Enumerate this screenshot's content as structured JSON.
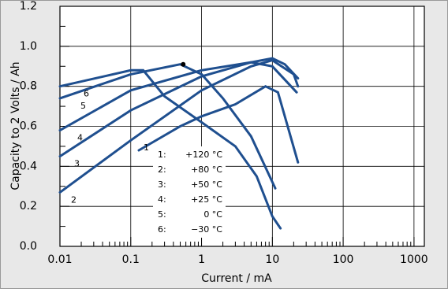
{
  "chart_data": {
    "type": "line",
    "log_x": true,
    "grid": true,
    "minor_ticks": true,
    "xlabel": "Current / mA",
    "ylabel": "Capacity to 2 Volts / Ah",
    "xlim": [
      0.01,
      1400
    ],
    "ylim": [
      0,
      1.2
    ],
    "xticks": [
      0.01,
      0.1,
      1,
      10,
      100,
      1000
    ],
    "yticks": [
      {
        "value": 0,
        "label": "0.0"
      },
      {
        "value": 0.2,
        "label": "0.2"
      },
      {
        "value": 0.4,
        "label": "0.4"
      },
      {
        "value": 0.6,
        "label": "0.6"
      },
      {
        "value": 0.8,
        "label": "0.8"
      },
      {
        "value": 1,
        "label": "1.0"
      },
      {
        "value": 1.2,
        "label": "1.2"
      }
    ],
    "marker": {
      "x": 0.55,
      "y": 0.91
    },
    "series": [
      {
        "label": "1",
        "key": "1:",
        "name": "+120 °C",
        "color": "#1f4f8f",
        "x": [
          0.13,
          0.5,
          1,
          3,
          8,
          12,
          23
        ],
        "values": [
          0.48,
          0.6,
          0.65,
          0.71,
          0.8,
          0.77,
          0.42
        ]
      },
      {
        "label": "2",
        "key": "2:",
        "name": "+80 °C",
        "color": "#1f4f8f",
        "x": [
          0.01,
          0.1,
          1,
          5,
          10,
          20,
          23
        ],
        "values": [
          0.27,
          0.53,
          0.78,
          0.9,
          0.93,
          0.86,
          0.8
        ]
      },
      {
        "label": "3",
        "key": "3:",
        "name": "+50 °C",
        "color": "#1f4f8f",
        "x": [
          0.01,
          0.1,
          1,
          5,
          10,
          15,
          23
        ],
        "values": [
          0.45,
          0.68,
          0.85,
          0.92,
          0.94,
          0.91,
          0.84
        ]
      },
      {
        "label": "4",
        "key": "4:",
        "name": "+25 °C",
        "color": "#1f4f8f",
        "x": [
          0.01,
          0.1,
          1,
          5,
          10,
          22
        ],
        "values": [
          0.58,
          0.78,
          0.88,
          0.92,
          0.9,
          0.77
        ]
      },
      {
        "label": "5",
        "key": "5:",
        "name": "0 °C",
        "color": "#1f4f8f",
        "x": [
          0.01,
          0.1,
          0.5,
          1,
          2,
          5,
          11
        ],
        "values": [
          0.74,
          0.86,
          0.91,
          0.86,
          0.74,
          0.55,
          0.29
        ]
      },
      {
        "label": "6",
        "key": "6:",
        "name": "−30 °C",
        "color": "#1f4f8f",
        "x": [
          0.01,
          0.1,
          0.15,
          0.3,
          1,
          3,
          6,
          10,
          13
        ],
        "values": [
          0.8,
          0.88,
          0.88,
          0.75,
          0.62,
          0.5,
          0.35,
          0.15,
          0.09
        ]
      }
    ]
  }
}
